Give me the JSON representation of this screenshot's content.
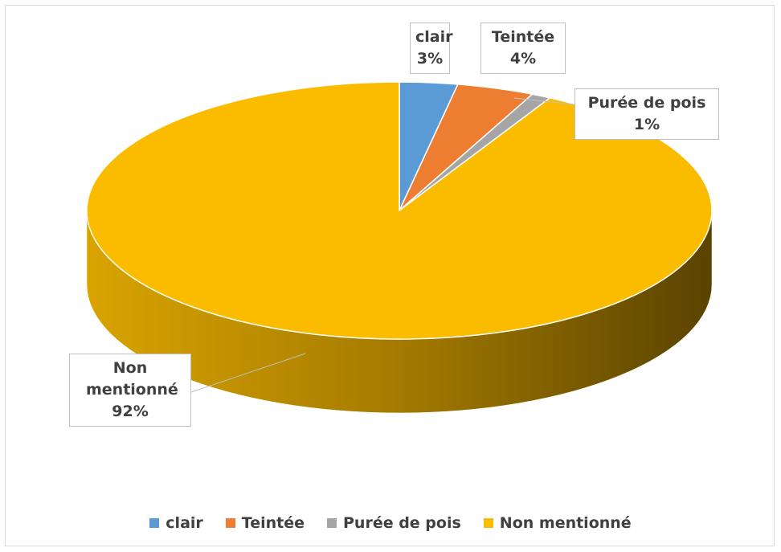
{
  "chart_data": {
    "type": "pie3d",
    "categories": [
      "clair",
      "Teintée",
      "Purée de pois",
      "Non mentionné"
    ],
    "values": [
      3,
      4,
      1,
      92
    ],
    "value_labels": [
      "3%",
      "4%",
      "1%",
      "92%"
    ],
    "colors": [
      "#5b9bd5",
      "#ed7d31",
      "#a5a5a5",
      "#fbbc00"
    ],
    "legend": "bottom"
  }
}
